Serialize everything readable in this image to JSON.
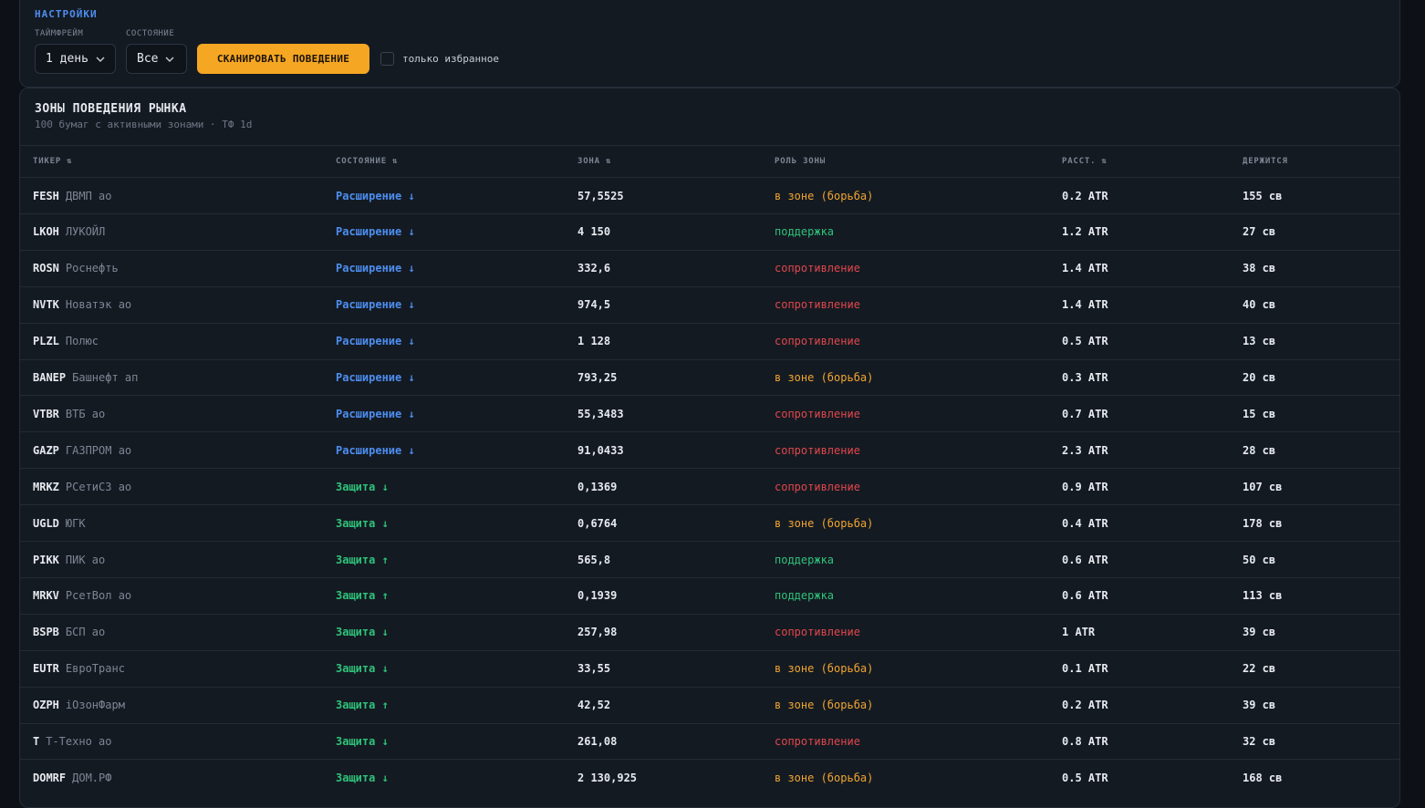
{
  "settings": {
    "title": "НАСТРОЙКИ",
    "timeframe_label": "ТАЙМФРЕЙМ",
    "timeframe": "1 день",
    "state_label": "СОСТОЯНИЕ",
    "state": "Все",
    "scan_button": "СКАНИРОВАТЬ ПОВЕДЕНИЕ",
    "favorites_only": "только избранное"
  },
  "table": {
    "title": "ЗОНЫ ПОВЕДЕНИЯ РЫНКА",
    "subtitle": "100 бумаг с активными зонами · ТФ 1d",
    "headers": [
      "ТИКЕР ⇅",
      "СОСТОЯНИЕ ⇅",
      "ЗОНА ⇅",
      "РОЛЬ ЗОНЫ",
      "РАССТ. ⇅",
      "ДЕРЖИТСЯ"
    ],
    "rows": [
      {
        "ticker": "FESH",
        "name": "ДВМП ао",
        "state": "Расширение ↓",
        "state_color": "#4d8ef0",
        "zone": "57,5525",
        "role": "в зоне (борьба)",
        "role_color": "#f0a530",
        "distance": "0.2 ATR",
        "holds": "155 св"
      },
      {
        "ticker": "LKOH",
        "name": "ЛУКОЙЛ",
        "state": "Расширение ↓",
        "state_color": "#4d8ef0",
        "zone": "4 150",
        "role": "поддержка",
        "role_color": "#2fc27a",
        "distance": "1.2 ATR",
        "holds": "27 св"
      },
      {
        "ticker": "ROSN",
        "name": "Роснефть",
        "state": "Расширение ↓",
        "state_color": "#4d8ef0",
        "zone": "332,6",
        "role": "сопротивление",
        "role_color": "#e0474c",
        "distance": "1.4 ATR",
        "holds": "38 св"
      },
      {
        "ticker": "NVTK",
        "name": "Новатэк ао",
        "state": "Расширение ↓",
        "state_color": "#4d8ef0",
        "zone": "974,5",
        "role": "сопротивление",
        "role_color": "#e0474c",
        "distance": "1.4 ATR",
        "holds": "40 св"
      },
      {
        "ticker": "PLZL",
        "name": "Полюс",
        "state": "Расширение ↓",
        "state_color": "#4d8ef0",
        "zone": "1 128",
        "role": "сопротивление",
        "role_color": "#e0474c",
        "distance": "0.5 ATR",
        "holds": "13 св"
      },
      {
        "ticker": "BANEP",
        "name": "Башнефт ап",
        "state": "Расширение ↓",
        "state_color": "#4d8ef0",
        "zone": "793,25",
        "role": "в зоне (борьба)",
        "role_color": "#f0a530",
        "distance": "0.3 ATR",
        "holds": "20 св"
      },
      {
        "ticker": "VTBR",
        "name": "ВТБ ао",
        "state": "Расширение ↓",
        "state_color": "#4d8ef0",
        "zone": "55,3483",
        "role": "сопротивление",
        "role_color": "#e0474c",
        "distance": "0.7 ATR",
        "holds": "15 св"
      },
      {
        "ticker": "GAZP",
        "name": "ГАЗПРОМ ао",
        "state": "Расширение ↓",
        "state_color": "#4d8ef0",
        "zone": "91,0433",
        "role": "сопротивление",
        "role_color": "#e0474c",
        "distance": "2.3 ATR",
        "holds": "28 св"
      },
      {
        "ticker": "MRKZ",
        "name": "РСетиСЗ ао",
        "state": "Защита ↓",
        "state_color": "#2fc27a",
        "zone": "0,1369",
        "role": "сопротивление",
        "role_color": "#e0474c",
        "distance": "0.9 ATR",
        "holds": "107 св"
      },
      {
        "ticker": "UGLD",
        "name": "ЮГК",
        "state": "Защита ↓",
        "state_color": "#2fc27a",
        "zone": "0,6764",
        "role": "в зоне (борьба)",
        "role_color": "#f0a530",
        "distance": "0.4 ATR",
        "holds": "178 св"
      },
      {
        "ticker": "PIKK",
        "name": "ПИК ао",
        "state": "Защита ↑",
        "state_color": "#2fc27a",
        "zone": "565,8",
        "role": "поддержка",
        "role_color": "#2fc27a",
        "distance": "0.6 ATR",
        "holds": "50 св"
      },
      {
        "ticker": "MRKV",
        "name": "РсетВол ао",
        "state": "Защита ↑",
        "state_color": "#2fc27a",
        "zone": "0,1939",
        "role": "поддержка",
        "role_color": "#2fc27a",
        "distance": "0.6 ATR",
        "holds": "113 св"
      },
      {
        "ticker": "BSPB",
        "name": "БСП ао",
        "state": "Защита ↓",
        "state_color": "#2fc27a",
        "zone": "257,98",
        "role": "сопротивление",
        "role_color": "#e0474c",
        "distance": "1 ATR",
        "holds": "39 св"
      },
      {
        "ticker": "EUTR",
        "name": "ЕвроТранс",
        "state": "Защита ↓",
        "state_color": "#2fc27a",
        "zone": "33,55",
        "role": "в зоне (борьба)",
        "role_color": "#f0a530",
        "distance": "0.1 ATR",
        "holds": "22 св"
      },
      {
        "ticker": "OZPH",
        "name": "iОзонФарм",
        "state": "Защита ↑",
        "state_color": "#2fc27a",
        "zone": "42,52",
        "role": "в зоне (борьба)",
        "role_color": "#f0a530",
        "distance": "0.2 ATR",
        "holds": "39 св"
      },
      {
        "ticker": "T",
        "name": "Т-Техно ао",
        "state": "Защита ↓",
        "state_color": "#2fc27a",
        "zone": "261,08",
        "role": "сопротивление",
        "role_color": "#e0474c",
        "distance": "0.8 ATR",
        "holds": "32 св"
      },
      {
        "ticker": "DOMRF",
        "name": "ДОМ.РФ",
        "state": "Защита ↓",
        "state_color": "#2fc27a",
        "zone": "2 130,925",
        "role": "в зоне (борьба)",
        "role_color": "#f0a530",
        "distance": "0.5 ATR",
        "holds": "168 св"
      }
    ]
  }
}
